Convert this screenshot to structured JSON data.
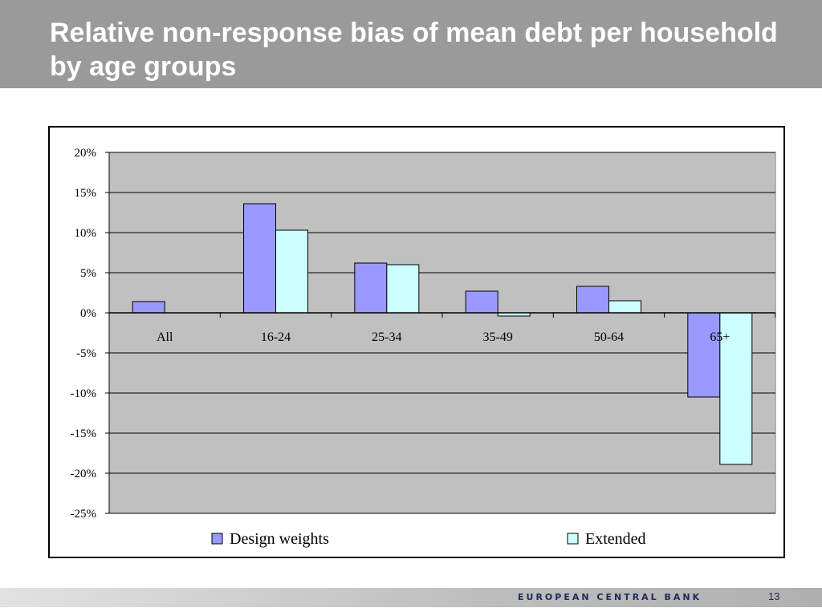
{
  "slide": {
    "title": "Relative non-response bias of mean debt per household by age groups",
    "footer_brand": "EUROPEAN CENTRAL BANK",
    "page_number": "13"
  },
  "chart_data": {
    "type": "bar",
    "title": "",
    "xlabel": "",
    "ylabel": "",
    "categories": [
      "All",
      "16-24",
      "25-34",
      "35-49",
      "50-64",
      "65+"
    ],
    "series": [
      {
        "name": "Design weights",
        "values": [
          1.4,
          13.6,
          6.2,
          2.7,
          3.3,
          -10.5
        ],
        "color": "#9999ff"
      },
      {
        "name": "Extended",
        "values": [
          0.0,
          10.3,
          6.0,
          -0.4,
          1.5,
          -18.9
        ],
        "color": "#ccffff"
      }
    ],
    "ylim": [
      -25,
      20
    ],
    "yticks": [
      20,
      15,
      10,
      5,
      0,
      -5,
      -10,
      -15,
      -20,
      -25
    ],
    "ytick_labels": [
      "20%",
      "15%",
      "10%",
      "5%",
      "0%",
      "-5%",
      "-10%",
      "-15%",
      "-20%",
      "-25%"
    ],
    "grid": true,
    "legend_position": "bottom",
    "plot_background": "#c0c0c0"
  }
}
